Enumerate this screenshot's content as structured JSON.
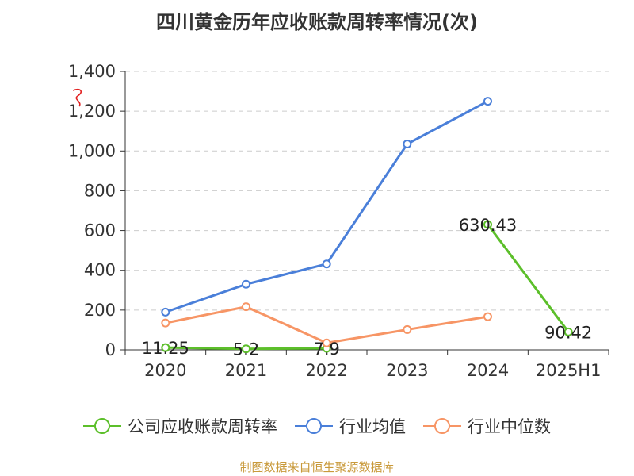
{
  "chart_data": {
    "type": "line",
    "title": "四川黄金历年应收账款周转率情况(次)",
    "categories": [
      "2020",
      "2021",
      "2022",
      "2023",
      "2024",
      "2025H1"
    ],
    "ylim": [
      0,
      1400
    ],
    "yticks": [
      0,
      200,
      400,
      600,
      800,
      1000,
      1200,
      1400
    ],
    "ytick_labels": [
      "0",
      "200",
      "400",
      "600",
      "800",
      "1,000",
      "1,200",
      "1,400"
    ],
    "grid": true,
    "legend_position": "bottom",
    "series": [
      {
        "name": "公司应收账款周转率",
        "color": "#5cbf2a",
        "values": [
          11.25,
          5.2,
          7.9,
          null,
          630.43,
          90.42
        ],
        "labels": [
          "11.25",
          "5.2",
          "7.9",
          null,
          "630.43",
          "90.42"
        ]
      },
      {
        "name": "行业均值",
        "color": "#4a7fd9",
        "values": [
          190,
          330,
          432,
          1035,
          1250,
          null
        ]
      },
      {
        "name": "行业中位数",
        "color": "#f79565",
        "values": [
          135,
          217,
          35,
          102,
          167,
          null
        ]
      }
    ]
  },
  "source_note": "制图数据来自恒生聚源数据库"
}
